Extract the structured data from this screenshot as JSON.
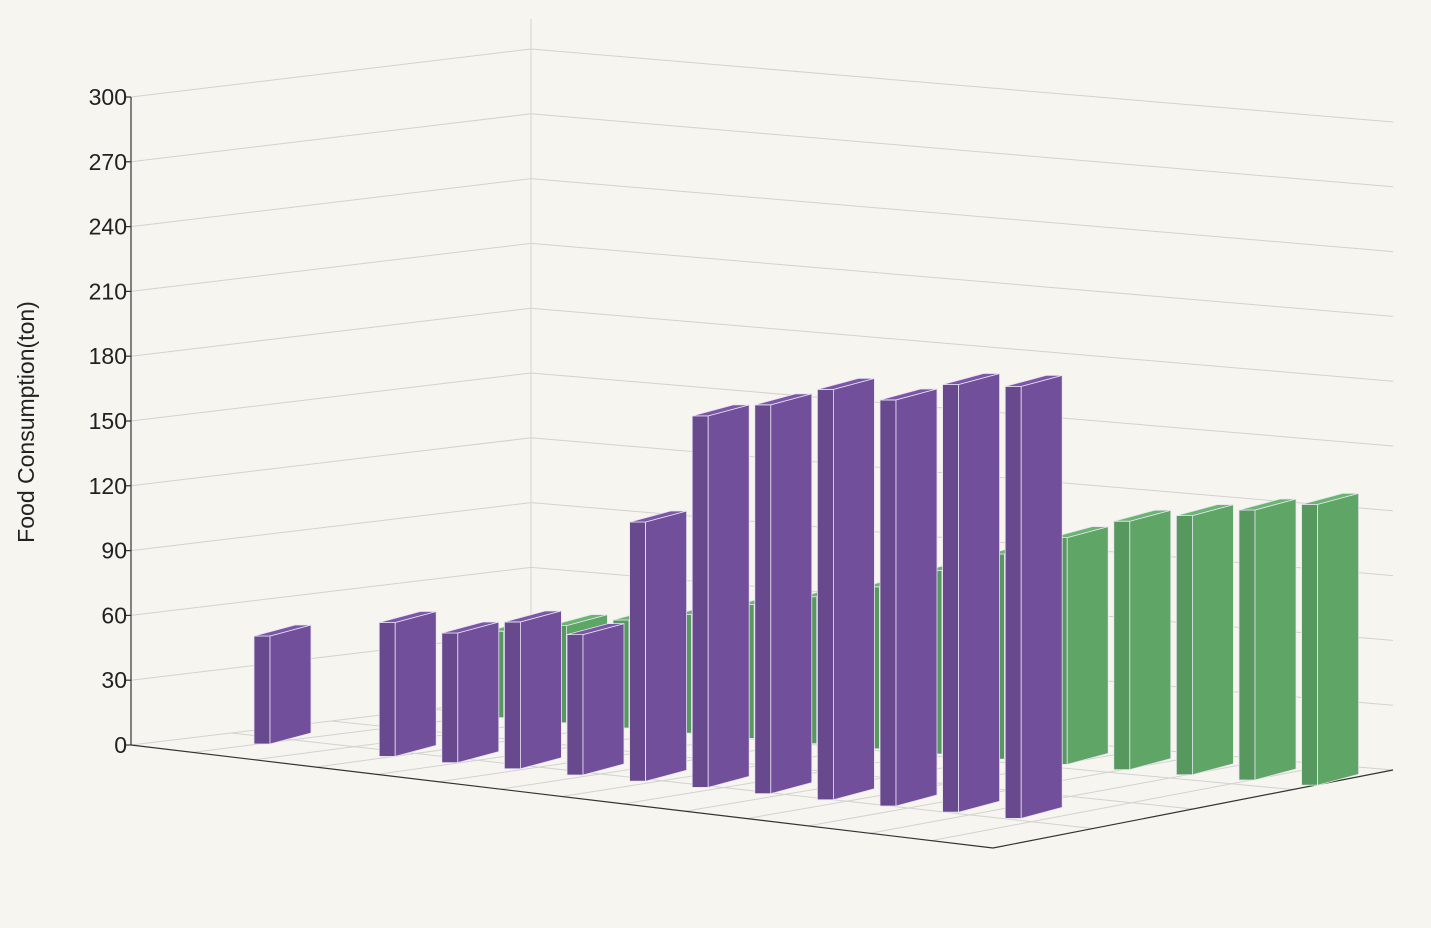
{
  "chart_data": {
    "type": "bar",
    "projection": "3d",
    "title": "",
    "xlabel": "",
    "ylabel": "Food Consumption(ton)",
    "zlabel": "",
    "ylim": [
      0,
      300
    ],
    "yticks": [
      "0",
      "30",
      "60",
      "90",
      "120",
      "150",
      "180",
      "210",
      "240",
      "270",
      "300"
    ],
    "grid": true,
    "legend": "none",
    "series": [
      {
        "color": "#5fa566",
        "values": [
          null,
          null,
          null,
          40,
          45,
          50,
          55,
          62,
          68,
          75,
          85,
          95,
          105,
          115,
          120,
          125,
          130
        ]
      },
      {
        "color": "#714f9a",
        "values": [
          50,
          null,
          62,
          60,
          68,
          65,
          120,
          172,
          180,
          190,
          188,
          198,
          200
        ]
      }
    ]
  }
}
